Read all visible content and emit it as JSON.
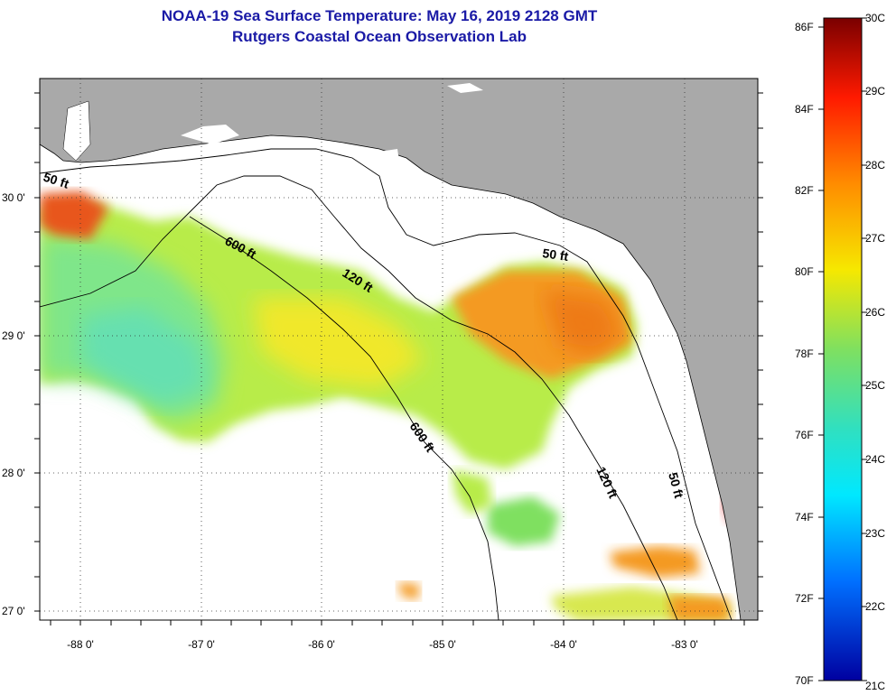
{
  "header": {
    "title": "NOAA-19 Sea Surface Temperature:  May 16, 2019 2128 GMT",
    "subtitle": "Rutgers Coastal Ocean Observation Lab"
  },
  "map": {
    "lon_labels": [
      "-88 0'",
      "-87 0'",
      "-86 0'",
      "-85 0'",
      "-84 0'",
      "-83 0'"
    ],
    "lat_labels": [
      "30 0'",
      "29 0'",
      "28 0'",
      "27 0'"
    ],
    "contour_labels": [
      "50 ft",
      "600 ft",
      "120 ft",
      "50 ft",
      "600 ft",
      "120 ft",
      "50 ft"
    ],
    "land_color": "#a9a9a9",
    "no_data_color": "#ffffff"
  },
  "colorbar": {
    "fahrenheit_labels": [
      "86F",
      "84F",
      "82F",
      "80F",
      "78F",
      "76F",
      "74F",
      "72F",
      "70F"
    ],
    "celsius_labels": [
      "30C",
      "29C",
      "28C",
      "27C",
      "26C",
      "25C",
      "24C",
      "23C",
      "22C",
      "21C"
    ],
    "colors": [
      "#7a0000",
      "#ff1a00",
      "#ff8c00",
      "#f6e800",
      "#7fe060",
      "#30e0c0",
      "#00c8ff",
      "#0070ff",
      "#0000c0"
    ]
  }
}
